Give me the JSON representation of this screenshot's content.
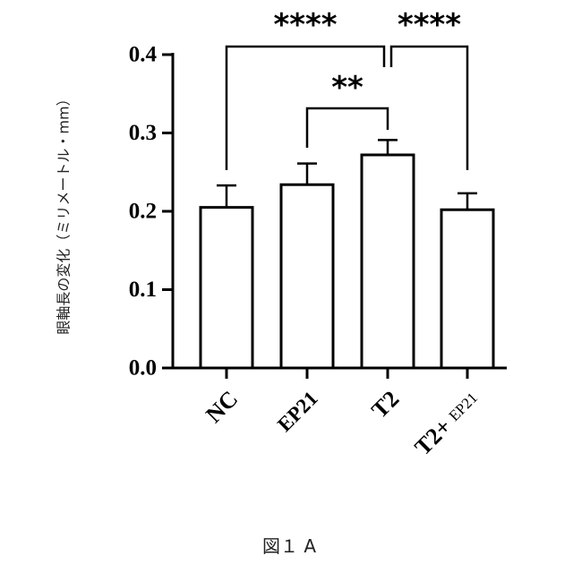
{
  "chart_data": {
    "type": "bar",
    "categories": [
      "NC",
      "EP21",
      "T2",
      "T2+ EP21"
    ],
    "values": [
      0.205,
      0.234,
      0.272,
      0.202
    ],
    "errors": [
      0.028,
      0.027,
      0.019,
      0.021
    ],
    "ylabel": "眼軸長の変化（ミリメートル・mm）",
    "ylim": [
      0.0,
      0.4
    ],
    "yticks": [
      "0.0",
      "0.1",
      "0.2",
      "0.3",
      "0.4"
    ],
    "grid": false,
    "significance": [
      {
        "from": "NC",
        "to": "T2",
        "label": "****"
      },
      {
        "from": "T2",
        "to": "T2+ EP21",
        "label": "****"
      },
      {
        "from": "EP21",
        "to": "T2",
        "label": "**"
      }
    ]
  },
  "caption": "図１ A",
  "colors": {
    "bar_fill": "#ffffff",
    "stroke": "#000000"
  }
}
